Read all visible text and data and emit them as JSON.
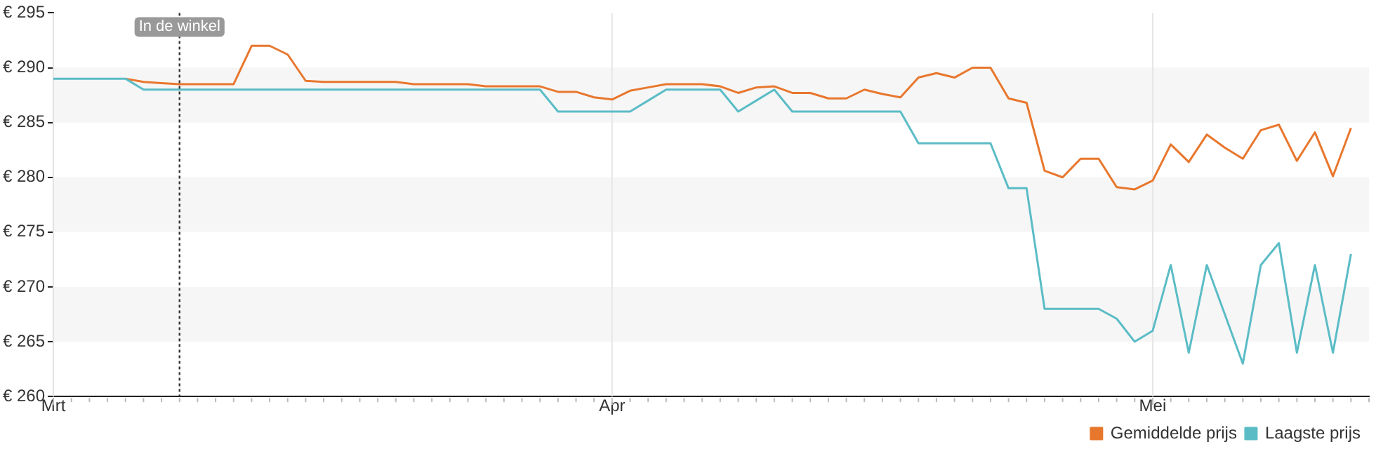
{
  "chart_data": {
    "type": "line",
    "categories": [
      "Mrt",
      null,
      null,
      null,
      null,
      null,
      null,
      null,
      null,
      null,
      null,
      null,
      null,
      null,
      null,
      null,
      null,
      null,
      null,
      null,
      null,
      null,
      null,
      null,
      null,
      null,
      null,
      null,
      null,
      null,
      null,
      "Apr",
      null,
      null,
      null,
      null,
      null,
      null,
      null,
      null,
      null,
      null,
      null,
      null,
      null,
      null,
      null,
      null,
      null,
      null,
      null,
      null,
      null,
      null,
      null,
      null,
      null,
      null,
      null,
      null,
      null,
      "Mei",
      null,
      null,
      null,
      null,
      null,
      null,
      null,
      null,
      null,
      null,
      null,
      null
    ],
    "series": [
      {
        "name": "Gemiddelde prijs",
        "color": "#e8772e",
        "values": [
          null,
          null,
          null,
          null,
          289,
          288.7,
          288.6,
          288.5,
          288.5,
          288.5,
          288.5,
          292,
          292,
          291.2,
          288.8,
          288.7,
          288.7,
          288.7,
          288.7,
          288.7,
          288.5,
          288.5,
          288.5,
          288.5,
          288.3,
          288.3,
          288.3,
          288.3,
          287.8,
          287.8,
          287.3,
          287.1,
          287.9,
          288.2,
          288.5,
          288.5,
          288.5,
          288.3,
          287.7,
          288.2,
          288.3,
          287.7,
          287.7,
          287.2,
          287.2,
          288,
          287.6,
          287.3,
          289.1,
          289.5,
          289.1,
          290,
          290,
          287.2,
          286.8,
          280.6,
          280,
          281.7,
          281.7,
          279.1,
          278.9,
          279.7,
          283,
          281.4,
          283.9,
          282.7,
          281.7,
          284.3,
          284.8,
          281.5,
          284.1,
          280.1,
          284.5,
          null
        ]
      },
      {
        "name": "Laagste prijs",
        "color": "#5bbcc6",
        "values": [
          289,
          289,
          289,
          289,
          289,
          288,
          288,
          288,
          288,
          288,
          288,
          288,
          288,
          288,
          288,
          288,
          288,
          288,
          288,
          288,
          288,
          288,
          288,
          288,
          288,
          288,
          288,
          288,
          286,
          286,
          286,
          286,
          286,
          287,
          288,
          288,
          288,
          288,
          286,
          287,
          288,
          286,
          286,
          286,
          286,
          286,
          286,
          286,
          283.1,
          283.1,
          283.1,
          283.1,
          283.1,
          279,
          279,
          268,
          268,
          268,
          268,
          267.1,
          265,
          266,
          272,
          264,
          272,
          267.5,
          263,
          272,
          274,
          264,
          272,
          264,
          273,
          null
        ]
      }
    ],
    "ylim": [
      260,
      295
    ],
    "yticks": [
      {
        "value": 260,
        "label": "€ 260"
      },
      {
        "value": 265,
        "label": "€ 265"
      },
      {
        "value": 270,
        "label": "€ 270"
      },
      {
        "value": 275,
        "label": "€ 275"
      },
      {
        "value": 280,
        "label": "€ 280"
      },
      {
        "value": 285,
        "label": "€ 285"
      },
      {
        "value": 290,
        "label": "€ 290"
      },
      {
        "value": 295,
        "label": "€ 295"
      }
    ],
    "annotations": [
      "In de winkel"
    ],
    "grid": true,
    "legend": "bottom right",
    "marker": "none",
    "line_style": "solid"
  }
}
